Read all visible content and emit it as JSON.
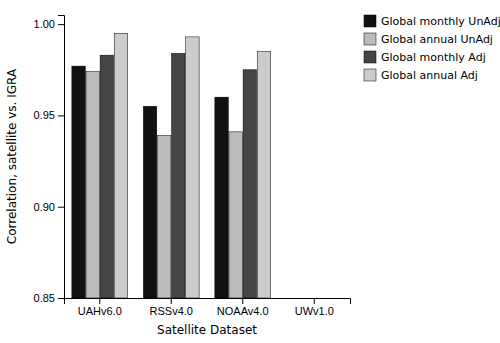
{
  "chart_data": {
    "type": "bar",
    "categories": [
      "UAHv6.0",
      "RSSv4.0",
      "NOAAv4.0",
      "UWv1.0"
    ],
    "series": [
      {
        "name": "Global monthly UnAdj",
        "color": "#111111",
        "values": [
          0.977,
          0.955,
          0.96,
          null
        ]
      },
      {
        "name": "Global annual UnAdj",
        "color": "#bbbbbb",
        "values": [
          0.974,
          0.939,
          0.941,
          null
        ]
      },
      {
        "name": "Global monthly Adj",
        "color": "#444444",
        "values": [
          0.983,
          0.984,
          0.975,
          null
        ]
      },
      {
        "name": "Global annual Adj",
        "color": "#cccccc",
        "values": [
          0.995,
          0.993,
          0.985,
          null
        ]
      }
    ],
    "xlabel": "Satellite Dataset",
    "ylabel": "Correlation, satellite vs. IGRA",
    "ylim": [
      0.85,
      1.005
    ],
    "yticks": [
      0.85,
      {
        "value": 0.9,
        "label": "0.90"
      },
      0.95,
      {
        "value": 1,
        "label": "1.00"
      }
    ],
    "grid": false,
    "legend": "right"
  }
}
